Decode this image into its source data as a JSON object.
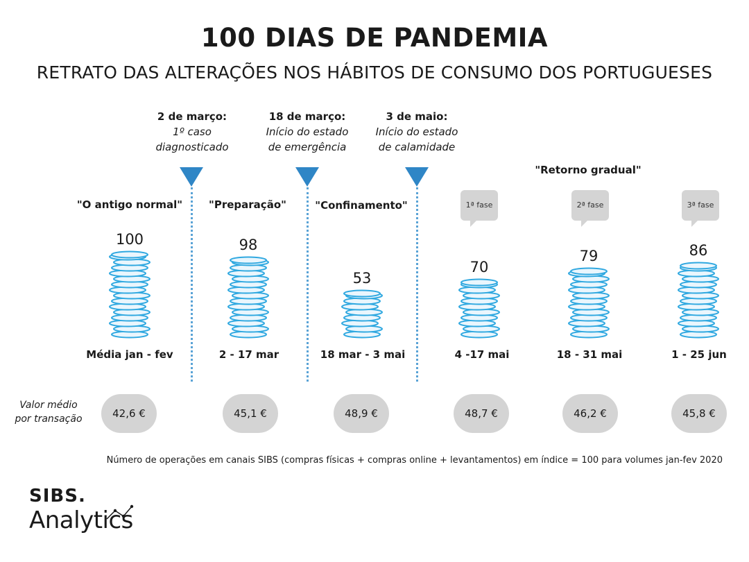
{
  "title": "100 DIAS DE PANDEMIA",
  "subtitle": "RETRATO DAS ALTERAÇÕES NOS HÁBITOS DE CONSUMO DOS PORTUGUESES",
  "events": [
    {
      "date": "2 de março:",
      "desc1": "1º caso",
      "desc2": "diagnosticado"
    },
    {
      "date": "18 de março:",
      "desc1": "Início do estado",
      "desc2": "de emergência"
    },
    {
      "date": "3 de maio:",
      "desc1": "Início do estado",
      "desc2": "de calamidade"
    }
  ],
  "retorno_label": "\"Retorno gradual\"",
  "phases": [
    {
      "label": "\"O antigo normal\""
    },
    {
      "label": "\"Preparação\""
    },
    {
      "label": "\"Confinamento\""
    },
    {
      "label": "1ª fase"
    },
    {
      "label": "2ª fase"
    },
    {
      "label": "3ª fase"
    }
  ],
  "row_label": {
    "line1": "Valor médio",
    "line2": "por transação"
  },
  "avg_values": [
    "42,6 €",
    "45,1 €",
    "48,9 €",
    "48,7 €",
    "46,2 €",
    "45,8 €"
  ],
  "footnote": "Número de operações em canais SIBS (compras físicas + compras online + levantamentos) em índice = 100 para volumes jan-fev 2020",
  "logo": {
    "top": "SIBS.",
    "bottom": "Analytics"
  },
  "colors": {
    "coin": "#2fa8e0",
    "coin_fill": "#eaf6fd",
    "marker": "#2f86c6",
    "pill": "#d4d4d4"
  },
  "chart_data": {
    "type": "bar",
    "title": "100 DIAS DE PANDEMIA",
    "categories": [
      "Média jan - fev",
      "2 - 17 mar",
      "18 mar - 3 mai",
      "4 -17 mai",
      "18 - 31 mai",
      "1 - 25 jun"
    ],
    "values": [
      100,
      98,
      53,
      70,
      79,
      86
    ],
    "value_labels": [
      "100",
      "98",
      "53",
      "70",
      "79",
      "86"
    ],
    "ylim": [
      0,
      100
    ]
  }
}
